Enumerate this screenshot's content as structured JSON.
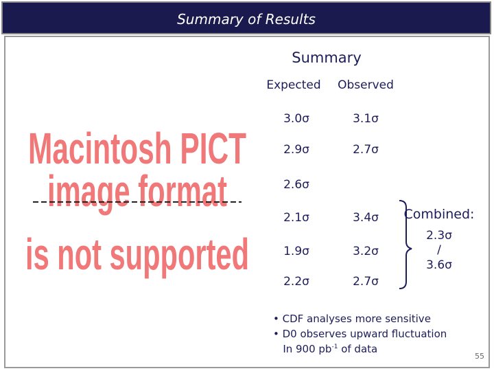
{
  "header": {
    "title": "Summary of Results"
  },
  "placeholder": {
    "lines": [
      "Macintosh PICT",
      "image format",
      "is not supported"
    ]
  },
  "summary": {
    "title": "Summary",
    "table": {
      "headers": [
        "Expected",
        "Observed"
      ],
      "rows": [
        [
          "3.0σ",
          "3.1σ"
        ],
        [
          "2.9σ",
          "2.7σ"
        ],
        [
          "2.6σ"
        ],
        [
          "2.1σ",
          "3.4σ"
        ],
        [
          "1.9σ",
          "3.2σ"
        ],
        [
          "2.2σ",
          "2.7σ"
        ]
      ]
    },
    "combined": {
      "label": "Combined:",
      "lines": [
        "2.3σ",
        "/",
        "3.6σ"
      ]
    }
  },
  "bullets": [
    {
      "parts": [
        "CDF analyses more sensitive"
      ]
    },
    {
      "parts": [
        "D0 observes upward fluctuation"
      ]
    },
    {
      "parts": [
        "In 900 pb",
        "-1",
        " of data"
      ]
    }
  ],
  "footer": {
    "page": "55"
  }
}
